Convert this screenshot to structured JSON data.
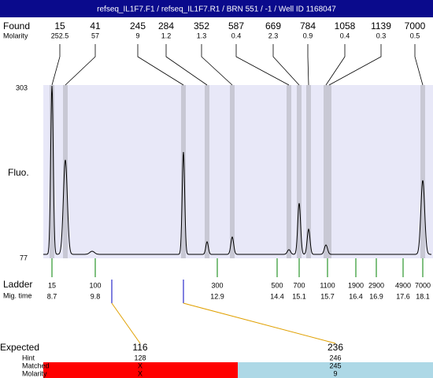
{
  "header": {
    "title": "refseq_IL1F7.F1 / refseq_IL1F7.R1 / BRN 551 / -1 / Well ID 1168047"
  },
  "found": {
    "label": "Found",
    "molarity_label": "Molarity",
    "peaks": [
      {
        "size": "15",
        "molarity": "252.5"
      },
      {
        "size": "41",
        "molarity": "57"
      },
      {
        "size": "245",
        "molarity": "9"
      },
      {
        "size": "284",
        "molarity": "1.2"
      },
      {
        "size": "352",
        "molarity": "1.3"
      },
      {
        "size": "587",
        "molarity": "0.4"
      },
      {
        "size": "669",
        "molarity": "2.3"
      },
      {
        "size": "784",
        "molarity": "0.9"
      },
      {
        "size": "1058",
        "molarity": "0.4"
      },
      {
        "size": "1139",
        "molarity": "0.3"
      },
      {
        "size": "7000",
        "molarity": "0.5"
      }
    ]
  },
  "plot": {
    "y_max": "303",
    "y_min": "77",
    "y_label": "Fluo."
  },
  "ladder": {
    "label": "Ladder",
    "time_label": "Mig. time",
    "items": [
      {
        "size": "15",
        "time": "8.7"
      },
      {
        "size": "100",
        "time": "9.8"
      },
      {
        "size": "300",
        "time": "12.9"
      },
      {
        "size": "500",
        "time": "14.4"
      },
      {
        "size": "700",
        "time": "15.1"
      },
      {
        "size": "1100",
        "time": "15.7"
      },
      {
        "size": "1900",
        "time": "16.4"
      },
      {
        "size": "2900",
        "time": "16.9"
      },
      {
        "size": "4900",
        "time": "17.6"
      },
      {
        "size": "7000",
        "time": "18.1"
      }
    ]
  },
  "expected": {
    "labels": [
      "Expected",
      "Hint",
      "Matched",
      "Molarity"
    ],
    "columns": [
      {
        "expected": "116",
        "hint": "128",
        "matched": "X",
        "molarity": "X"
      },
      {
        "expected": "236",
        "hint": "246",
        "matched": "245",
        "molarity": "9"
      }
    ]
  }
}
